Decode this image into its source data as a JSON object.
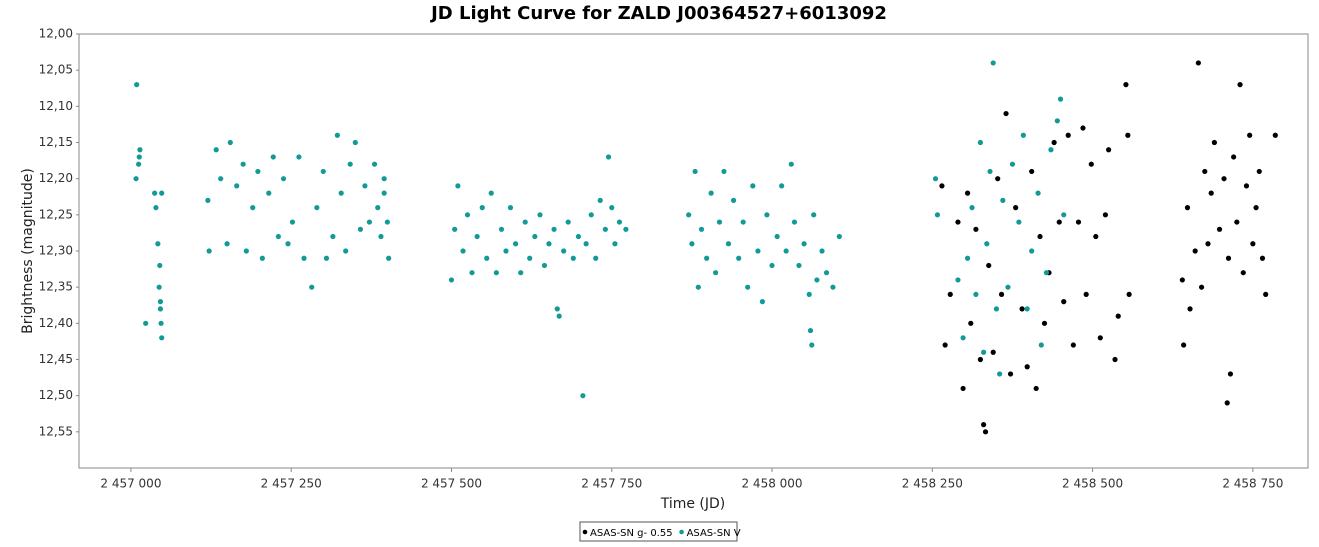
{
  "chart_data": {
    "type": "scatter",
    "title": "JD Light Curve for ZALD J00364527+6013092",
    "x_label": "Time (JD)",
    "y_label": "Brightness (magnitude)",
    "xlim": [
      2456919,
      2458836
    ],
    "ylim": [
      12.0,
      12.6
    ],
    "y_inverted": true,
    "grid": false,
    "legend": "bottom",
    "xticks": [
      {
        "value": 2457000,
        "label": "2 457 000"
      },
      {
        "value": 2457250,
        "label": "2 457 250"
      },
      {
        "value": 2457500,
        "label": "2 457 500"
      },
      {
        "value": 2457750,
        "label": "2 457 750"
      },
      {
        "value": 2458000,
        "label": "2 458 000"
      },
      {
        "value": 2458250,
        "label": "2 458 250"
      },
      {
        "value": 2458500,
        "label": "2 458 500"
      },
      {
        "value": 2458750,
        "label": "2 458 750"
      }
    ],
    "yticks": [
      {
        "value": 12.0,
        "label": "12,00"
      },
      {
        "value": 12.05,
        "label": "12,05"
      },
      {
        "value": 12.1,
        "label": "12,10"
      },
      {
        "value": 12.15,
        "label": "12,15"
      },
      {
        "value": 12.2,
        "label": "12,20"
      },
      {
        "value": 12.25,
        "label": "12,25"
      },
      {
        "value": 12.3,
        "label": "12,30"
      },
      {
        "value": 12.35,
        "label": "12,35"
      },
      {
        "value": 12.4,
        "label": "12,40"
      },
      {
        "value": 12.45,
        "label": "12,45"
      },
      {
        "value": 12.5,
        "label": "12,50"
      },
      {
        "value": 12.55,
        "label": "12,55"
      }
    ],
    "series": [
      {
        "name": "ASAS-SN g- 0.55",
        "color": "#000000",
        "x": [
          2458265,
          2458270,
          2458278,
          2458290,
          2458298,
          2458305,
          2458310,
          2458318,
          2458325,
          2458330,
          2458333,
          2458338,
          2458345,
          2458352,
          2458358,
          2458365,
          2458372,
          2458380,
          2458390,
          2458398,
          2458405,
          2458412,
          2458418,
          2458425,
          2458432,
          2458440,
          2458448,
          2458455,
          2458462,
          2458470,
          2458478,
          2458485,
          2458490,
          2458498,
          2458505,
          2458512,
          2458520,
          2458525,
          2458535,
          2458540,
          2458552,
          2458555,
          2458557,
          2458640,
          2458642,
          2458648,
          2458652,
          2458660,
          2458665,
          2458670,
          2458675,
          2458680,
          2458685,
          2458690,
          2458698,
          2458705,
          2458710,
          2458712,
          2458715,
          2458720,
          2458725,
          2458730,
          2458735,
          2458740,
          2458745,
          2458750,
          2458755,
          2458760,
          2458765,
          2458770,
          2458785
        ],
        "y": [
          12.21,
          12.43,
          12.36,
          12.26,
          12.49,
          12.22,
          12.4,
          12.27,
          12.45,
          12.54,
          12.55,
          12.32,
          12.44,
          12.2,
          12.36,
          12.11,
          12.47,
          12.24,
          12.38,
          12.46,
          12.19,
          12.49,
          12.28,
          12.4,
          12.33,
          12.15,
          12.26,
          12.37,
          12.14,
          12.43,
          12.26,
          12.13,
          12.36,
          12.18,
          12.28,
          12.42,
          12.25,
          12.16,
          12.45,
          12.39,
          12.07,
          12.14,
          12.36,
          12.34,
          12.43,
          12.24,
          12.38,
          12.3,
          12.04,
          12.35,
          12.19,
          12.29,
          12.22,
          12.15,
          12.27,
          12.2,
          12.51,
          12.31,
          12.47,
          12.17,
          12.26,
          12.07,
          12.33,
          12.21,
          12.14,
          12.29,
          12.24,
          12.19,
          12.31,
          12.36,
          12.14
        ]
      },
      {
        "name": "ASAS-SN V",
        "color": "#129a96",
        "x": [
          2457008,
          2457009,
          2457012,
          2457013,
          2457014,
          2457023,
          2457037,
          2457039,
          2457042,
          2457044,
          2457045,
          2457046,
          2457047,
          2457048,
          2457048,
          2457046,
          2457120,
          2457122,
          2457133,
          2457140,
          2457150,
          2457155,
          2457165,
          2457175,
          2457180,
          2457190,
          2457198,
          2457205,
          2457215,
          2457222,
          2457230,
          2457238,
          2457245,
          2457252,
          2457262,
          2457270,
          2457282,
          2457290,
          2457300,
          2457305,
          2457315,
          2457322,
          2457328,
          2457335,
          2457342,
          2457350,
          2457358,
          2457365,
          2457372,
          2457380,
          2457385,
          2457390,
          2457395,
          2457400,
          2457402,
          2457395,
          2457500,
          2457505,
          2457510,
          2457518,
          2457525,
          2457532,
          2457540,
          2457548,
          2457555,
          2457562,
          2457570,
          2457578,
          2457585,
          2457592,
          2457600,
          2457608,
          2457615,
          2457622,
          2457630,
          2457638,
          2457645,
          2457652,
          2457660,
          2457665,
          2457668,
          2457675,
          2457682,
          2457690,
          2457698,
          2457705,
          2457710,
          2457718,
          2457725,
          2457732,
          2457740,
          2457745,
          2457750,
          2457755,
          2457762,
          2457772,
          2457870,
          2457875,
          2457880,
          2457885,
          2457890,
          2457898,
          2457905,
          2457912,
          2457918,
          2457925,
          2457932,
          2457940,
          2457948,
          2457955,
          2457962,
          2457970,
          2457978,
          2457985,
          2457992,
          2458000,
          2458008,
          2458015,
          2458022,
          2458030,
          2458035,
          2458042,
          2458050,
          2458058,
          2458060,
          2458062,
          2458065,
          2458070,
          2458078,
          2458085,
          2458095,
          2458105,
          2458255,
          2458258,
          2458290,
          2458298,
          2458305,
          2458312,
          2458318,
          2458325,
          2458330,
          2458335,
          2458340,
          2458345,
          2458350,
          2458355,
          2458360,
          2458368,
          2458375,
          2458385,
          2458392,
          2458398,
          2458405,
          2458415,
          2458420,
          2458428,
          2458435,
          2458445,
          2458450,
          2458455
        ],
        "y": [
          12.2,
          12.07,
          12.18,
          12.17,
          12.16,
          12.4,
          12.22,
          12.24,
          12.29,
          12.35,
          12.32,
          12.37,
          12.4,
          12.42,
          12.22,
          12.38,
          12.23,
          12.3,
          12.16,
          12.2,
          12.29,
          12.15,
          12.21,
          12.18,
          12.3,
          12.24,
          12.19,
          12.31,
          12.22,
          12.17,
          12.28,
          12.2,
          12.29,
          12.26,
          12.17,
          12.31,
          12.35,
          12.24,
          12.19,
          12.31,
          12.28,
          12.14,
          12.22,
          12.3,
          12.18,
          12.15,
          12.27,
          12.21,
          12.26,
          12.18,
          12.24,
          12.28,
          12.22,
          12.26,
          12.31,
          12.2,
          12.34,
          12.27,
          12.21,
          12.3,
          12.25,
          12.33,
          12.28,
          12.24,
          12.31,
          12.22,
          12.33,
          12.27,
          12.3,
          12.24,
          12.29,
          12.33,
          12.26,
          12.31,
          12.28,
          12.25,
          12.32,
          12.29,
          12.27,
          12.38,
          12.39,
          12.3,
          12.26,
          12.31,
          12.28,
          12.5,
          12.29,
          12.25,
          12.31,
          12.23,
          12.27,
          12.17,
          12.24,
          12.29,
          12.26,
          12.27,
          12.25,
          12.29,
          12.19,
          12.35,
          12.27,
          12.31,
          12.22,
          12.33,
          12.26,
          12.19,
          12.29,
          12.23,
          12.31,
          12.26,
          12.35,
          12.21,
          12.3,
          12.37,
          12.25,
          12.32,
          12.28,
          12.21,
          12.3,
          12.18,
          12.26,
          12.32,
          12.29,
          12.36,
          12.41,
          12.43,
          12.25,
          12.34,
          12.3,
          12.33,
          12.35,
          12.28,
          12.2,
          12.25,
          12.34,
          12.42,
          12.31,
          12.24,
          12.36,
          12.15,
          12.44,
          12.29,
          12.19,
          12.04,
          12.38,
          12.47,
          12.23,
          12.35,
          12.18,
          12.26,
          12.14,
          12.38,
          12.3,
          12.22,
          12.43,
          12.33,
          12.16,
          12.12,
          12.09,
          12.25
        ]
      }
    ]
  }
}
